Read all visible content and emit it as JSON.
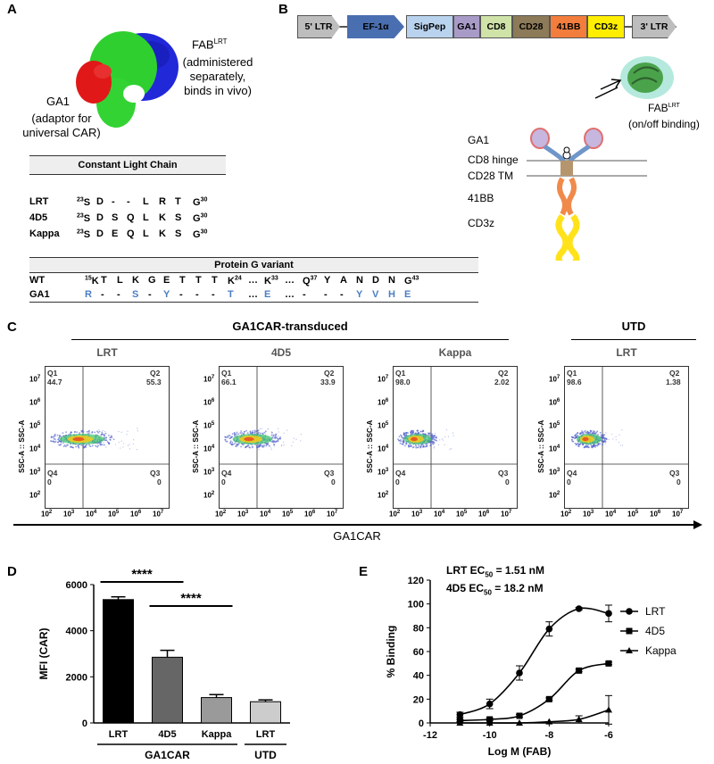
{
  "panels": {
    "a": "A",
    "b": "B",
    "c": "C",
    "d": "D",
    "e": "E"
  },
  "panel_a": {
    "fab_label": "FAB",
    "fab_sup": "LRT",
    "fab_desc": [
      "(administered",
      "separately,",
      "binds in vivo)"
    ],
    "ga1_label": "GA1",
    "ga1_desc": [
      "(adaptor for",
      "universal CAR)"
    ],
    "clc_header": "Constant Light Chain",
    "clc_rows": [
      {
        "name": "LRT",
        "cells": [
          "23S",
          "D",
          "-",
          "-",
          "L",
          "R",
          "T",
          "G30"
        ]
      },
      {
        "name": "4D5",
        "cells": [
          "23S",
          "D",
          "S",
          "Q",
          "L",
          "K",
          "S",
          "G30"
        ]
      },
      {
        "name": "Kappa",
        "cells": [
          "23S",
          "D",
          "E",
          "Q",
          "L",
          "K",
          "S",
          "G30"
        ]
      }
    ],
    "pg_header": "Protein G variant",
    "pg_rows": [
      {
        "name": "WT",
        "cells": [
          "15K",
          "T",
          "L",
          "K",
          "G",
          "E",
          "T",
          "T",
          "T",
          "K24",
          "…",
          "K33",
          "…",
          "Q37",
          "Y",
          "A",
          "N",
          "D",
          "N",
          "G43"
        ]
      },
      {
        "name": "GA1",
        "cells": [
          "R",
          "-",
          "-",
          "S",
          "-",
          "Y",
          "-",
          "-",
          "-",
          "T",
          "…",
          "E",
          "…",
          "-",
          "-",
          "-",
          "Y",
          "V",
          "H",
          "E"
        ]
      }
    ]
  },
  "panel_b": {
    "cassette": [
      "5' LTR",
      "EF-1α",
      "SigPep",
      "GA1",
      "CD8",
      "CD28",
      "41BB",
      "CD3z",
      "3' LTR"
    ],
    "domains": [
      "GA1",
      "CD8 hinge",
      "CD28 TM",
      "41BB",
      "CD3z"
    ],
    "fab_label": "FAB",
    "fab_sup": "LRT",
    "fab_desc": "(on/off binding)"
  },
  "panel_c": {
    "group_transduced": "GA1CAR-transduced",
    "group_utd": "UTD",
    "x_axis_label": "GA1CAR",
    "y_axis_label": "SSC-A :: SSC-A",
    "plots": [
      {
        "title": "LRT",
        "q1": "Q1",
        "q1v": "44.7",
        "q2": "Q2",
        "q2v": "55.3",
        "q3": "Q3",
        "q3v": "0",
        "q4": "Q4",
        "q4v": "0"
      },
      {
        "title": "4D5",
        "q1": "Q1",
        "q1v": "66.1",
        "q2": "Q2",
        "q2v": "33.9",
        "q3": "Q3",
        "q3v": "0",
        "q4": "Q4",
        "q4v": "0"
      },
      {
        "title": "Kappa",
        "q1": "Q1",
        "q1v": "98.0",
        "q2": "Q2",
        "q2v": "2.02",
        "q3": "Q3",
        "q3v": "0",
        "q4": "Q4",
        "q4v": "0"
      },
      {
        "title": "LRT",
        "q1": "Q1",
        "q1v": "98.6",
        "q2": "Q2",
        "q2v": "1.38",
        "q3": "Q3",
        "q3v": "0",
        "q4": "Q4",
        "q4v": "0"
      }
    ],
    "y_ticks": [
      "7",
      "6",
      "5",
      "4",
      "3",
      "2"
    ],
    "x_ticks": [
      "2",
      "3",
      "4",
      "5",
      "6",
      "7"
    ],
    "tick_base": "10"
  },
  "chart_data": [
    {
      "panel": "D",
      "type": "bar",
      "ylabel": "MFI (CAR)",
      "ylim": [
        0,
        6000
      ],
      "yticks": [
        0,
        2000,
        4000,
        6000
      ],
      "categories": [
        "LRT",
        "4D5",
        "Kappa",
        "LRT"
      ],
      "values": [
        5350,
        2850,
        1100,
        920
      ],
      "errors": [
        120,
        300,
        130,
        80
      ],
      "colors": [
        "#000000",
        "#666666",
        "#9a9a9a",
        "#cccccc"
      ],
      "groups": [
        {
          "label": "GA1CAR",
          "from": 0,
          "to": 2
        },
        {
          "label": "UTD",
          "from": 3,
          "to": 3
        }
      ],
      "significance": [
        {
          "label": "****",
          "from": 0,
          "to": 1
        },
        {
          "label": "****",
          "from": 1,
          "to": 2
        }
      ]
    },
    {
      "panel": "E",
      "type": "line",
      "xlabel": "Log M (FAB)",
      "ylabel": "% Binding",
      "xlim": [
        -12,
        -6
      ],
      "ylim": [
        0,
        120
      ],
      "xticks": [
        -12,
        -10,
        -8,
        -6
      ],
      "yticks": [
        0,
        20,
        40,
        60,
        80,
        100,
        120
      ],
      "annotations": [
        "LRT EC50 = 1.51 nM",
        "4D5 EC50 = 18.2 nM"
      ],
      "series": [
        {
          "name": "LRT",
          "marker": "circle",
          "x": [
            -11,
            -10,
            -9,
            -8,
            -7,
            -6
          ],
          "y": [
            7,
            16,
            42,
            79,
            96,
            92
          ],
          "err": [
            2,
            4,
            6,
            6,
            1,
            7
          ]
        },
        {
          "name": "4D5",
          "marker": "square",
          "x": [
            -11,
            -10,
            -9,
            -8,
            -7,
            -6
          ],
          "y": [
            2,
            3,
            6,
            20,
            44,
            50
          ],
          "err": [
            1,
            1,
            1,
            1,
            1,
            1
          ]
        },
        {
          "name": "Kappa",
          "marker": "triangle",
          "x": [
            -11,
            -10,
            -9,
            -8,
            -7,
            -6
          ],
          "y": [
            0,
            0,
            0,
            1,
            3,
            11
          ],
          "err": [
            0,
            0,
            0,
            0,
            3,
            12
          ]
        }
      ]
    }
  ],
  "ec50": {
    "lrt_pre": "LRT EC",
    "lrt_sub": "50",
    "lrt_post": " = 1.51 nM",
    "d5_pre": "4D5 EC",
    "d5_sub": "50",
    "d5_post": " = 18.2 nM"
  }
}
